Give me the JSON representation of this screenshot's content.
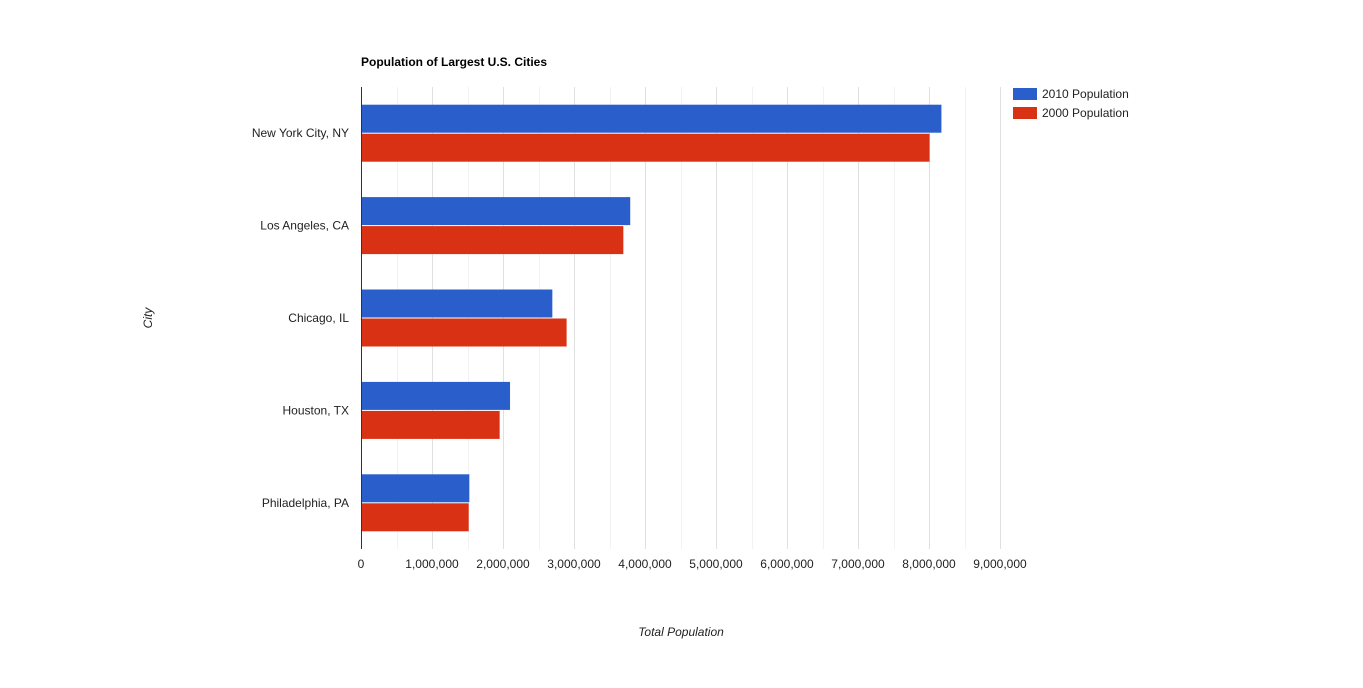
{
  "chart_data": {
    "type": "bar",
    "orientation": "horizontal",
    "title": "Population of Largest U.S. Cities",
    "xlabel": "Total Population",
    "ylabel": "City",
    "categories": [
      "New York City, NY",
      "Los Angeles, CA",
      "Chicago, IL",
      "Houston, TX",
      "Philadelphia, PA"
    ],
    "series": [
      {
        "name": "2010 Population",
        "color": "#2a5fcb",
        "values": [
          8175000,
          3792000,
          2695000,
          2099000,
          1526000
        ]
      },
      {
        "name": "2000 Population",
        "color": "#d93113",
        "values": [
          8008000,
          3695000,
          2896000,
          1953000,
          1517000
        ]
      }
    ],
    "xlim": [
      0,
      9000000
    ],
    "xticks": [
      0,
      1000000,
      2000000,
      3000000,
      4000000,
      5000000,
      6000000,
      7000000,
      8000000,
      9000000
    ],
    "xtick_labels": [
      "0",
      "1,000,000",
      "2,000,000",
      "3,000,000",
      "4,000,000",
      "5,000,000",
      "6,000,000",
      "7,000,000",
      "8,000,000",
      "9,000,000"
    ],
    "grid": true,
    "legend_position": "right"
  }
}
